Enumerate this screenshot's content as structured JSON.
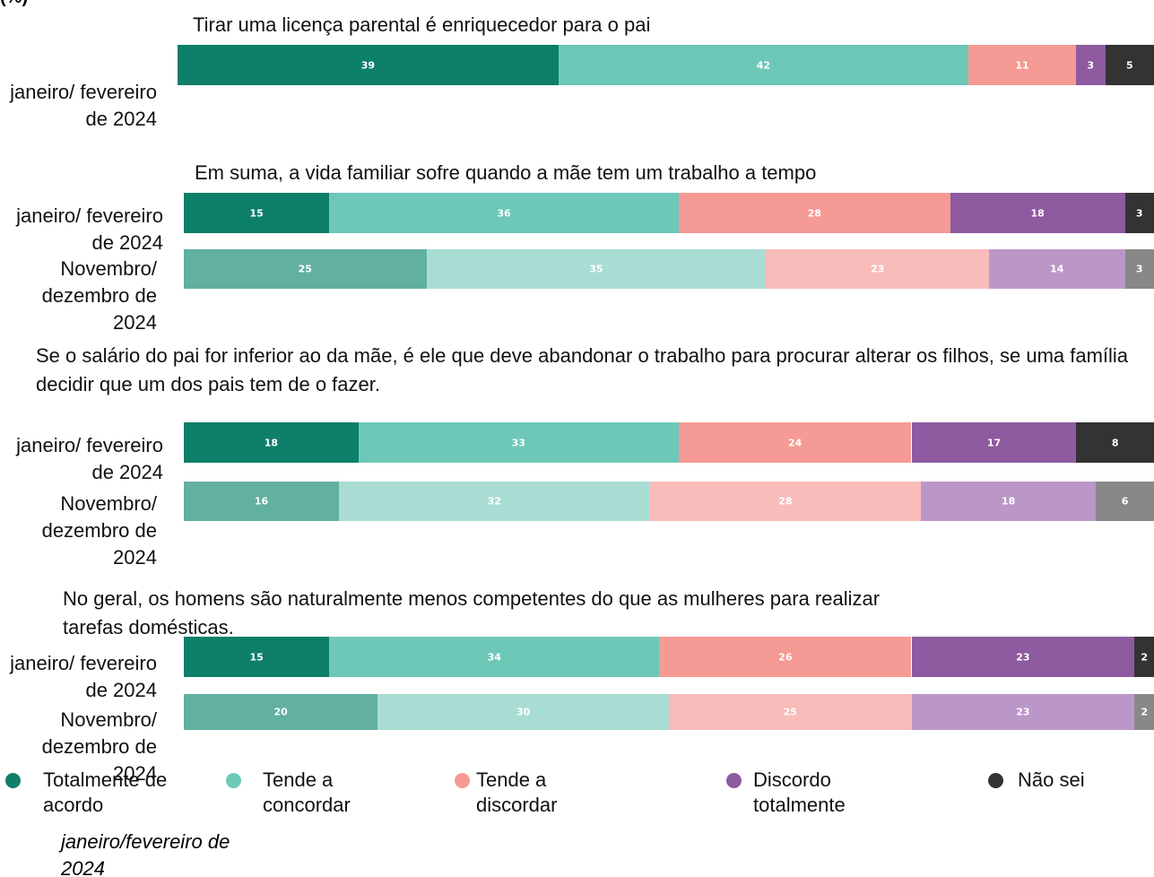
{
  "unit_label": "(%)",
  "legend": {
    "items": [
      {
        "name": "Totalmente de acordo",
        "color": "#0e7f68",
        "light_color": "#62b0a0"
      },
      {
        "name": "Tende a concordar",
        "color": "#6ec8b8",
        "light_color": "#a9ddd4"
      },
      {
        "name": "Tende a discordar",
        "color": "#f59a94",
        "light_color": "#f8bcba"
      },
      {
        "name": "Discordo totalmente",
        "color": "#8e5aa0",
        "light_color": "#bb97c8"
      },
      {
        "name": "Não sei",
        "color": "#333333",
        "light_color": "#888888"
      }
    ],
    "note": "janeiro/fevereiro de 2024"
  },
  "chart_data": [
    {
      "type": "bar",
      "orientation": "horizontal",
      "stacked": true,
      "xlim": [
        0,
        100
      ],
      "title": "Tirar uma licença parental é enriquecedor para o pai",
      "categories": [
        "janeiro/ fevereiro de 2024"
      ],
      "series": [
        {
          "values": [
            39
          ]
        },
        {
          "values": [
            42
          ]
        },
        {
          "values": [
            11
          ]
        },
        {
          "values": [
            3
          ]
        },
        {
          "values": [
            5
          ]
        }
      ]
    },
    {
      "type": "bar",
      "orientation": "horizontal",
      "stacked": true,
      "xlim": [
        0,
        100
      ],
      "title": "Em suma, a vida familiar sofre quando a mãe tem um trabalho a tempo inteiro.",
      "categories": [
        "janeiro/ fevereiro de 2024",
        "Novembro/ dezembro de 2024"
      ],
      "series": [
        {
          "values": [
            15,
            25
          ]
        },
        {
          "values": [
            36,
            35
          ]
        },
        {
          "values": [
            28,
            23
          ]
        },
        {
          "values": [
            18,
            14
          ]
        },
        {
          "values": [
            3,
            3
          ]
        }
      ]
    },
    {
      "type": "bar",
      "orientation": "horizontal",
      "stacked": true,
      "xlim": [
        0,
        100
      ],
      "title": "Se o salário do pai for inferior ao da mãe, é ele que deve abandonar o trabalho para procurar alterar os filhos, se uma família decidir que um dos pais tem de o fazer.",
      "categories": [
        "janeiro/ fevereiro de 2024",
        "Novembro/ dezembro de 2024"
      ],
      "series": [
        {
          "values": [
            18,
            16
          ]
        },
        {
          "values": [
            33,
            32
          ]
        },
        {
          "values": [
            24,
            28
          ]
        },
        {
          "values": [
            17,
            18
          ]
        },
        {
          "values": [
            8,
            6
          ]
        }
      ]
    },
    {
      "type": "bar",
      "orientation": "horizontal",
      "stacked": true,
      "xlim": [
        0,
        100
      ],
      "title": "No geral, os homens são naturalmente menos competentes do que as mulheres para realizar tarefas domésticas.",
      "categories": [
        "janeiro/ fevereiro de 2024",
        "Novembro/ dezembro de 2024"
      ],
      "series": [
        {
          "values": [
            15,
            20
          ]
        },
        {
          "values": [
            34,
            30
          ]
        },
        {
          "values": [
            26,
            25
          ]
        },
        {
          "values": [
            23,
            23
          ]
        },
        {
          "values": [
            2,
            2
          ]
        }
      ]
    }
  ]
}
